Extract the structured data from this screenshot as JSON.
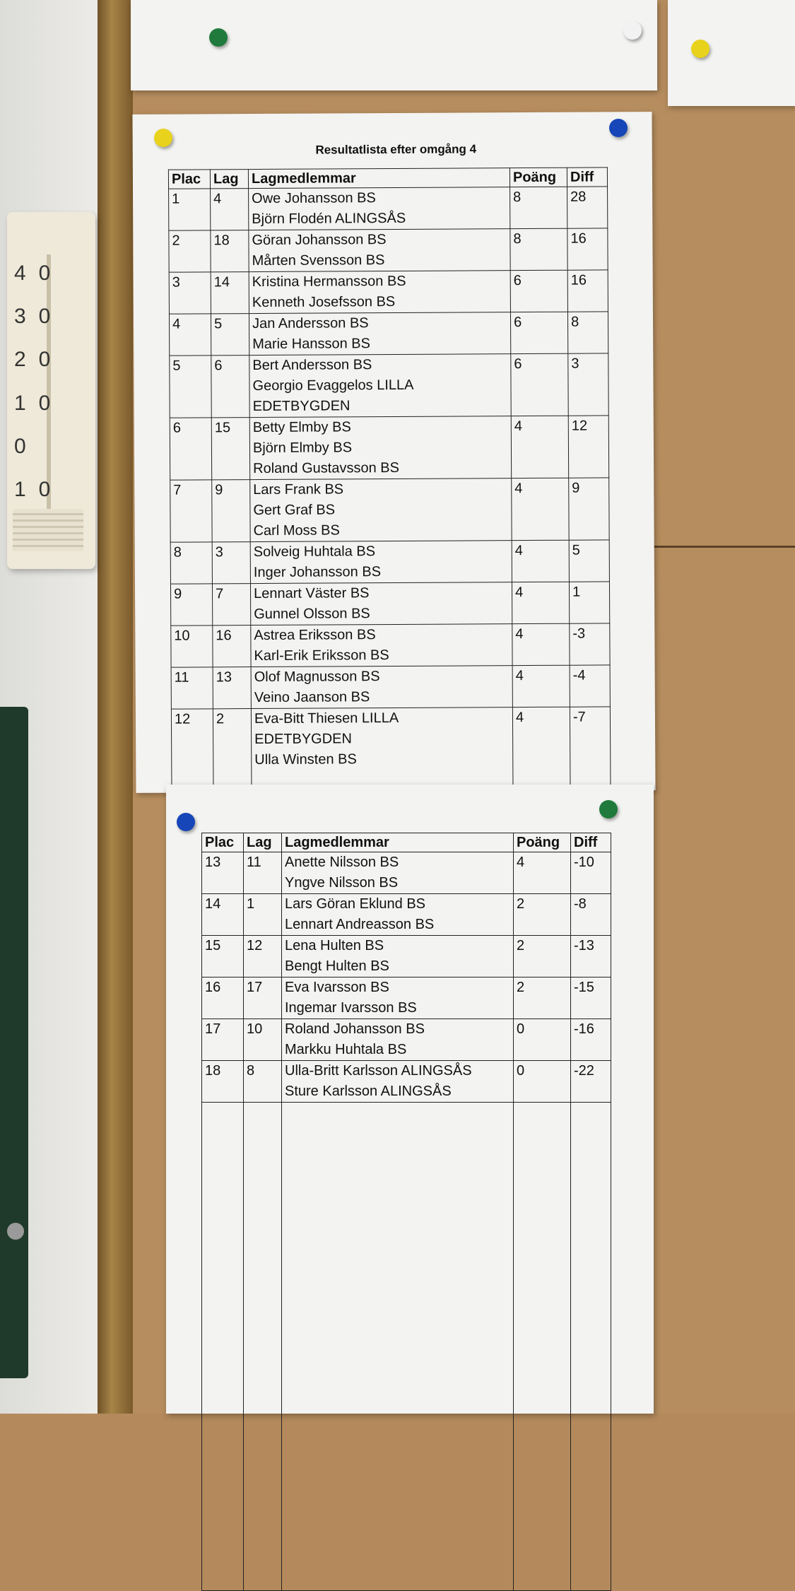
{
  "sheet1": {
    "title": "Resultatlista efter omgång 4",
    "headers": {
      "plac": "Plac",
      "lag": "Lag",
      "members": "Lagmedlemmar",
      "points": "Poäng",
      "diff": "Diff"
    },
    "rows": [
      {
        "plac": "1",
        "lag": "4",
        "members": [
          "Owe Johansson BS",
          "Björn Flodén ALINGSÅS"
        ],
        "points": "8",
        "diff": "28"
      },
      {
        "plac": "2",
        "lag": "18",
        "members": [
          "Göran Johansson BS",
          "Mårten Svensson BS"
        ],
        "points": "8",
        "diff": "16"
      },
      {
        "plac": "3",
        "lag": "14",
        "members": [
          "Kristina Hermansson BS",
          "Kenneth Josefsson BS"
        ],
        "points": "6",
        "diff": "16"
      },
      {
        "plac": "4",
        "lag": "5",
        "members": [
          "Jan Andersson BS",
          "Marie Hansson BS"
        ],
        "points": "6",
        "diff": "8"
      },
      {
        "plac": "5",
        "lag": "6",
        "members": [
          "Bert Andersson BS",
          "Georgio Evaggelos LILLA",
          "EDETBYGDEN"
        ],
        "points": "6",
        "diff": "3"
      },
      {
        "plac": "6",
        "lag": "15",
        "members": [
          "Betty Elmby BS",
          "Björn Elmby BS",
          "Roland Gustavsson BS"
        ],
        "points": "4",
        "diff": "12"
      },
      {
        "plac": "7",
        "lag": "9",
        "members": [
          "Lars Frank BS",
          "Gert Graf BS",
          "Carl Moss BS"
        ],
        "points": "4",
        "diff": "9"
      },
      {
        "plac": "8",
        "lag": "3",
        "members": [
          "Solveig Huhtala BS",
          "Inger Johansson BS"
        ],
        "points": "4",
        "diff": "5"
      },
      {
        "plac": "9",
        "lag": "7",
        "members": [
          "Lennart Väster BS",
          "Gunnel Olsson BS"
        ],
        "points": "4",
        "diff": "1"
      },
      {
        "plac": "10",
        "lag": "16",
        "members": [
          "Astrea Eriksson BS",
          "Karl-Erik Eriksson BS"
        ],
        "points": "4",
        "diff": "-3"
      },
      {
        "plac": "11",
        "lag": "13",
        "members": [
          "Olof Magnusson BS",
          "Veino Jaanson BS"
        ],
        "points": "4",
        "diff": "-4"
      },
      {
        "plac": "12",
        "lag": "2",
        "members": [
          "Eva-Bitt Thiesen LILLA",
          "EDETBYGDEN",
          "Ulla Winsten BS",
          ""
        ],
        "points": "4",
        "diff": "-7"
      }
    ]
  },
  "sheet2": {
    "headers": {
      "plac": "Plac",
      "lag": "Lag",
      "members": "Lagmedlemmar",
      "points": "Poäng",
      "diff": "Diff"
    },
    "rows": [
      {
        "plac": "13",
        "lag": "11",
        "members": [
          "Anette Nilsson BS",
          "Yngve Nilsson BS"
        ],
        "points": "4",
        "diff": "-10"
      },
      {
        "plac": "14",
        "lag": "1",
        "members": [
          "Lars Göran Eklund BS",
          "Lennart Andreasson BS"
        ],
        "points": "2",
        "diff": "-8"
      },
      {
        "plac": "15",
        "lag": "12",
        "members": [
          "Lena Hulten BS",
          "Bengt Hulten BS"
        ],
        "points": "2",
        "diff": "-13"
      },
      {
        "plac": "16",
        "lag": "17",
        "members": [
          "Eva Ivarsson BS",
          "Ingemar Ivarsson BS"
        ],
        "points": "2",
        "diff": "-15"
      },
      {
        "plac": "17",
        "lag": "10",
        "members": [
          "Roland Johansson BS",
          "Markku Huhtala BS"
        ],
        "points": "0",
        "diff": "-16"
      },
      {
        "plac": "18",
        "lag": "8",
        "members": [
          "Ulla-Britt Karlsson ALINGSÅS",
          "Sture Karlsson ALINGSÅS"
        ],
        "points": "0",
        "diff": "-22"
      }
    ]
  },
  "thermometer": {
    "scale": [
      "40",
      "30",
      "20",
      "10",
      "0",
      "10"
    ]
  },
  "pins": {
    "yellow": "#e8d21c",
    "blue": "#1646b8",
    "green": "#1f7a3c",
    "white": "#f2f2f2"
  }
}
